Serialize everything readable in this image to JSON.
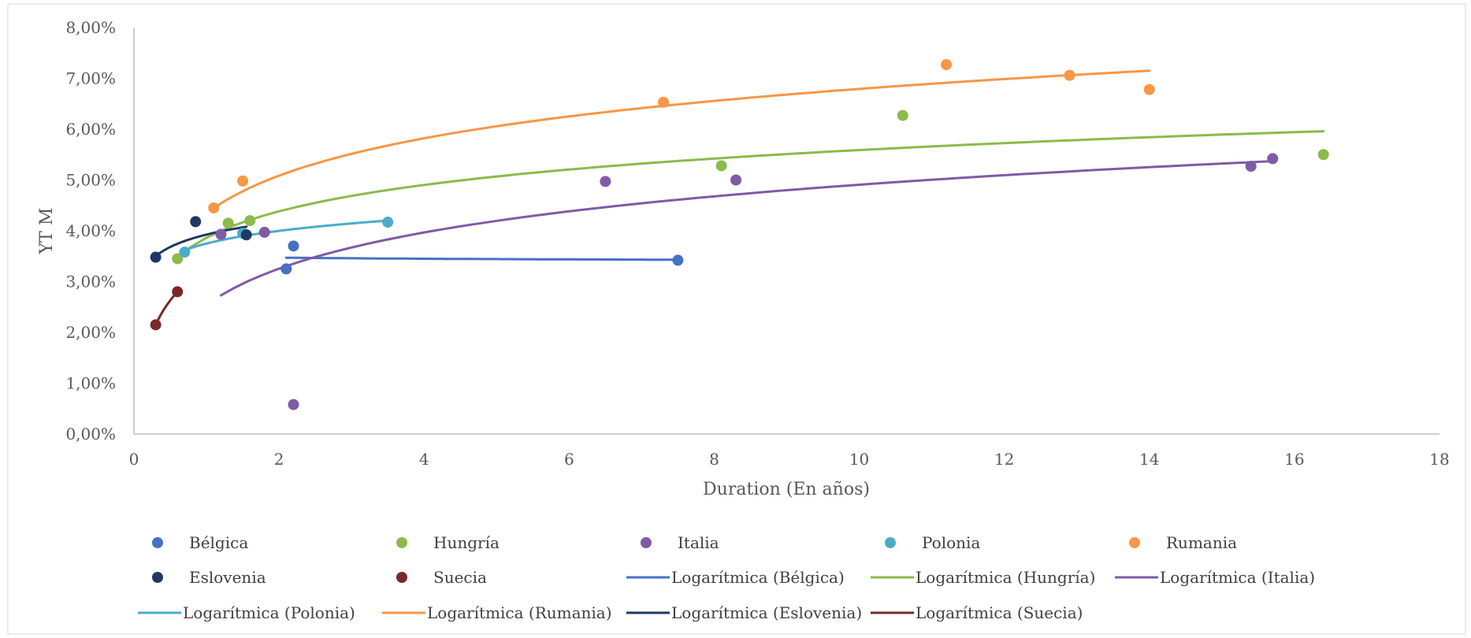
{
  "chart_data": {
    "type": "scatter",
    "title": "",
    "xlabel": "Duration (En años)",
    "ylabel": "YT M",
    "xlim": [
      0,
      18
    ],
    "ylim": [
      0,
      8
    ],
    "x_ticks": [
      "0",
      "2",
      "4",
      "6",
      "8",
      "10",
      "12",
      "14",
      "16",
      "18"
    ],
    "y_ticks": [
      "0,00%",
      "1,00%",
      "2,00%",
      "3,00%",
      "4,00%",
      "5,00%",
      "6,00%",
      "7,00%",
      "8,00%"
    ],
    "grid": false,
    "legend_position": "bottom",
    "series": [
      {
        "name": "Bélgica",
        "color": "#4472C4",
        "points": [
          [
            2.1,
            3.25
          ],
          [
            2.2,
            3.7
          ],
          [
            7.5,
            3.42
          ]
        ],
        "trend": {
          "name": "Logarítmica (Bélgica)",
          "x": [
            2.1,
            7.5
          ],
          "y": [
            3.47,
            3.43
          ]
        }
      },
      {
        "name": "Hungría",
        "color": "#8CBA4B",
        "points": [
          [
            0.6,
            3.45
          ],
          [
            1.3,
            4.15
          ],
          [
            1.6,
            4.2
          ],
          [
            8.1,
            5.28
          ],
          [
            10.6,
            6.27
          ],
          [
            16.4,
            5.5
          ]
        ],
        "trend": {
          "name": "Logarítmica (Hungría)",
          "x": [
            0.6,
            16.4
          ],
          "y": [
            3.48,
            5.96
          ]
        }
      },
      {
        "name": "Italia",
        "color": "#7F5BA6",
        "points": [
          [
            1.2,
            3.93
          ],
          [
            1.8,
            3.97
          ],
          [
            2.2,
            0.58
          ],
          [
            6.5,
            4.97
          ],
          [
            8.3,
            5.0
          ],
          [
            15.4,
            5.27
          ],
          [
            15.7,
            5.42
          ]
        ],
        "trend": {
          "name": "Logarítmica (Italia)",
          "x": [
            1.2,
            15.7
          ],
          "y": [
            2.73,
            5.37
          ]
        }
      },
      {
        "name": "Polonia",
        "color": "#4BACC6",
        "points": [
          [
            0.7,
            3.58
          ],
          [
            1.5,
            3.95
          ],
          [
            3.5,
            4.17
          ]
        ],
        "trend": {
          "name": "Logarítmica (Polonia)",
          "x": [
            0.7,
            3.5
          ],
          "y": [
            3.62,
            4.2
          ]
        }
      },
      {
        "name": "Rumania",
        "color": "#F79646",
        "points": [
          [
            1.1,
            4.45
          ],
          [
            1.5,
            4.98
          ],
          [
            7.3,
            6.53
          ],
          [
            11.2,
            7.27
          ],
          [
            12.9,
            7.06
          ],
          [
            14.0,
            6.78
          ]
        ],
        "trend": {
          "name": "Logarítmica (Rumania)",
          "x": [
            1.1,
            14.0
          ],
          "y": [
            4.45,
            7.15
          ]
        }
      },
      {
        "name": "Eslovenia",
        "color": "#1F3864",
        "points": [
          [
            0.3,
            3.48
          ],
          [
            0.85,
            4.18
          ],
          [
            1.55,
            3.92
          ]
        ],
        "trend": {
          "name": "Logarítmica (Eslovenia)",
          "x": [
            0.3,
            1.55
          ],
          "y": [
            3.5,
            4.08
          ]
        }
      },
      {
        "name": "Suecia",
        "color": "#7B2828",
        "points": [
          [
            0.3,
            2.15
          ],
          [
            0.6,
            2.8
          ]
        ],
        "trend": {
          "name": "Logarítmica (Suecia)",
          "x": [
            0.3,
            0.6
          ],
          "y": [
            2.15,
            2.8
          ]
        }
      }
    ]
  }
}
